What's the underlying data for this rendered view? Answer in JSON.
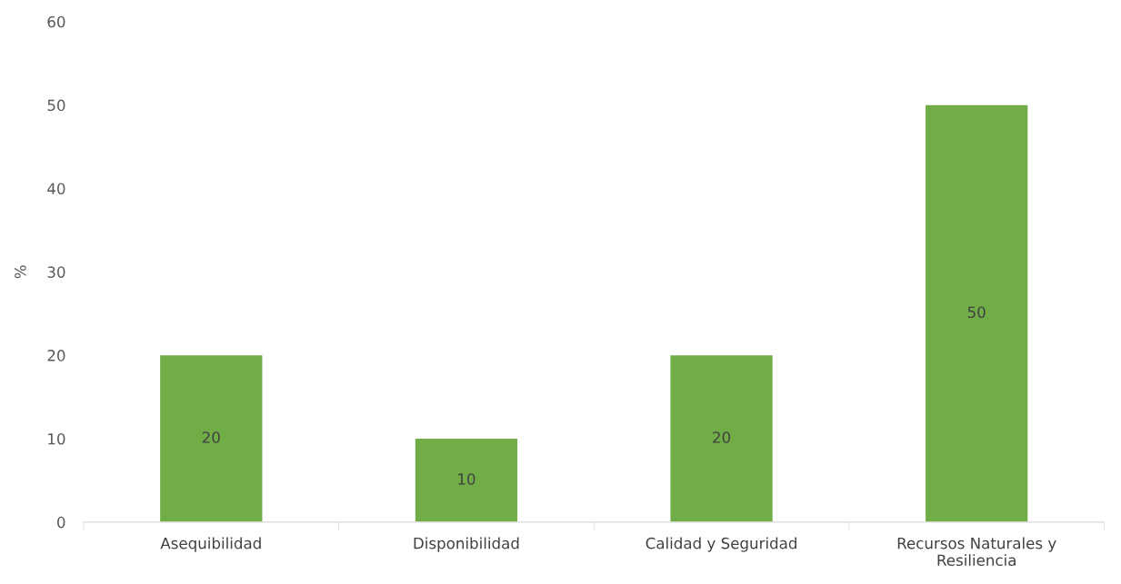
{
  "chart_data": {
    "type": "bar",
    "ylabel": "%",
    "categories": [
      "Asequibilidad",
      "Disponibilidad",
      "Calidad y Seguridad",
      "Recursos Naturales y\nResiliencia"
    ],
    "values": [
      20,
      10,
      20,
      50
    ],
    "color": "#70ad47",
    "ylim": [
      0,
      60
    ],
    "yticks": [
      0,
      10,
      20,
      30,
      40,
      50,
      60
    ],
    "data_labels": true,
    "grid": false,
    "legend": false
  }
}
